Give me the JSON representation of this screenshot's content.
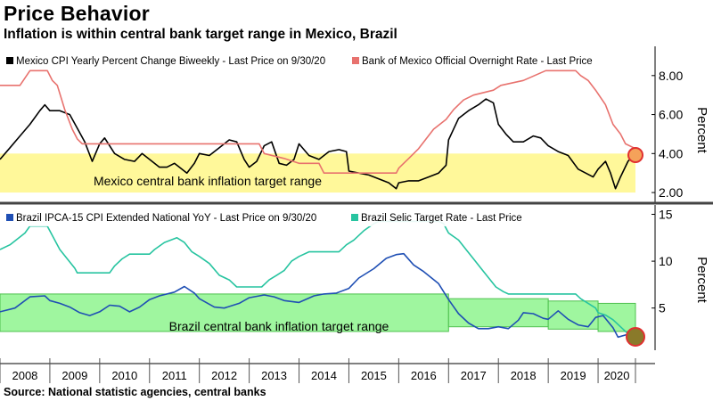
{
  "header": {
    "title": "Price Behavior",
    "subtitle": "Inflation is within central bank target range in Mexico, Brazil"
  },
  "source": "Source: National statistic agencies, central banks",
  "colors": {
    "mexico_cpi": "#000000",
    "mexico_rate": "#e8726e",
    "brazil_cpi": "#1f4fb4",
    "brazil_selic": "#27c4a0",
    "mexico_band": "#fff89a",
    "brazil_band": "#8ef58e",
    "marker_orange": "#f5a25a",
    "marker_brown": "#8a7a2a",
    "marker_ring": "#e03030"
  },
  "chart_data": [
    {
      "type": "line",
      "panel": "top",
      "ylabel": "Percent",
      "ylim": [
        1.5,
        9.5
      ],
      "yticks": [
        2.0,
        4.0,
        6.0,
        8.0
      ],
      "ytick_labels": [
        "2.00",
        "4.00",
        "6.00",
        "8.00"
      ],
      "xlim": [
        2008.0,
        2020.75
      ],
      "legend_position": "top-left",
      "band": {
        "from": 2.0,
        "to": 4.0,
        "label": "Mexico central bank inflation target range"
      },
      "end_marker": {
        "x": 2020.75,
        "y": 4.0
      },
      "series": [
        {
          "name": "Mexico CPI Yearly Percent Change Biweekly - Last Price on 9/30/20",
          "color_key": "mexico_cpi",
          "points": [
            [
              2008.0,
              3.7
            ],
            [
              2008.2,
              4.3
            ],
            [
              2008.4,
              4.9
            ],
            [
              2008.6,
              5.5
            ],
            [
              2008.8,
              6.2
            ],
            [
              2008.9,
              6.5
            ],
            [
              2009.0,
              6.2
            ],
            [
              2009.2,
              6.2
            ],
            [
              2009.4,
              6.0
            ],
            [
              2009.55,
              5.3
            ],
            [
              2009.7,
              4.6
            ],
            [
              2009.85,
              3.6
            ],
            [
              2010.0,
              4.5
            ],
            [
              2010.1,
              4.8
            ],
            [
              2010.3,
              4.0
            ],
            [
              2010.5,
              3.7
            ],
            [
              2010.7,
              3.6
            ],
            [
              2010.85,
              4.0
            ],
            [
              2011.0,
              3.7
            ],
            [
              2011.2,
              3.3
            ],
            [
              2011.35,
              3.3
            ],
            [
              2011.5,
              3.5
            ],
            [
              2011.6,
              3.3
            ],
            [
              2011.75,
              3.0
            ],
            [
              2011.9,
              3.5
            ],
            [
              2012.0,
              4.0
            ],
            [
              2012.2,
              3.9
            ],
            [
              2012.4,
              4.3
            ],
            [
              2012.6,
              4.7
            ],
            [
              2012.75,
              4.6
            ],
            [
              2012.9,
              3.7
            ],
            [
              2013.0,
              3.3
            ],
            [
              2013.15,
              3.6
            ],
            [
              2013.3,
              4.4
            ],
            [
              2013.45,
              4.6
            ],
            [
              2013.6,
              3.5
            ],
            [
              2013.75,
              3.4
            ],
            [
              2013.9,
              3.7
            ],
            [
              2014.0,
              4.5
            ],
            [
              2014.2,
              3.9
            ],
            [
              2014.4,
              3.7
            ],
            [
              2014.6,
              4.1
            ],
            [
              2014.8,
              4.2
            ],
            [
              2014.95,
              4.1
            ],
            [
              2015.0,
              3.1
            ],
            [
              2015.2,
              3.0
            ],
            [
              2015.4,
              2.9
            ],
            [
              2015.6,
              2.7
            ],
            [
              2015.8,
              2.5
            ],
            [
              2015.95,
              2.2
            ],
            [
              2016.0,
              2.5
            ],
            [
              2016.2,
              2.6
            ],
            [
              2016.4,
              2.6
            ],
            [
              2016.6,
              2.8
            ],
            [
              2016.8,
              3.0
            ],
            [
              2016.95,
              3.4
            ],
            [
              2017.0,
              4.7
            ],
            [
              2017.2,
              5.8
            ],
            [
              2017.4,
              6.2
            ],
            [
              2017.6,
              6.5
            ],
            [
              2017.75,
              6.8
            ],
            [
              2017.9,
              6.6
            ],
            [
              2018.0,
              5.5
            ],
            [
              2018.15,
              5.0
            ],
            [
              2018.3,
              4.6
            ],
            [
              2018.5,
              4.6
            ],
            [
              2018.7,
              4.9
            ],
            [
              2018.85,
              4.8
            ],
            [
              2019.0,
              4.4
            ],
            [
              2019.2,
              4.1
            ],
            [
              2019.4,
              3.9
            ],
            [
              2019.6,
              3.2
            ],
            [
              2019.75,
              3.0
            ],
            [
              2019.9,
              2.8
            ],
            [
              2020.0,
              3.2
            ],
            [
              2020.15,
              3.6
            ],
            [
              2020.25,
              3.0
            ],
            [
              2020.35,
              2.2
            ],
            [
              2020.45,
              2.8
            ],
            [
              2020.6,
              3.6
            ],
            [
              2020.75,
              4.0
            ]
          ]
        },
        {
          "name": "Bank of Mexico Official Overnight Rate - Last Price",
          "color_key": "mexico_rate",
          "points": [
            [
              2008.0,
              7.5
            ],
            [
              2008.4,
              7.5
            ],
            [
              2008.6,
              8.25
            ],
            [
              2008.95,
              8.25
            ],
            [
              2009.05,
              7.75
            ],
            [
              2009.15,
              7.5
            ],
            [
              2009.3,
              6.25
            ],
            [
              2009.45,
              5.25
            ],
            [
              2009.55,
              4.75
            ],
            [
              2009.65,
              4.5
            ],
            [
              2013.2,
              4.5
            ],
            [
              2013.3,
              4.0
            ],
            [
              2013.7,
              3.75
            ],
            [
              2014.0,
              3.5
            ],
            [
              2014.4,
              3.5
            ],
            [
              2014.5,
              3.0
            ],
            [
              2015.95,
              3.0
            ],
            [
              2016.0,
              3.25
            ],
            [
              2016.2,
              3.75
            ],
            [
              2016.4,
              4.25
            ],
            [
              2016.55,
              4.75
            ],
            [
              2016.7,
              5.25
            ],
            [
              2016.95,
              5.75
            ],
            [
              2017.1,
              6.25
            ],
            [
              2017.3,
              6.75
            ],
            [
              2017.5,
              7.0
            ],
            [
              2017.9,
              7.25
            ],
            [
              2018.05,
              7.5
            ],
            [
              2018.5,
              7.75
            ],
            [
              2018.95,
              8.25
            ],
            [
              2019.55,
              8.25
            ],
            [
              2019.65,
              8.0
            ],
            [
              2019.8,
              7.75
            ],
            [
              2019.95,
              7.25
            ],
            [
              2020.15,
              6.5
            ],
            [
              2020.3,
              5.5
            ],
            [
              2020.45,
              5.0
            ],
            [
              2020.55,
              4.5
            ],
            [
              2020.75,
              4.25
            ]
          ]
        }
      ]
    },
    {
      "type": "line",
      "panel": "bottom",
      "ylabel": "Percent",
      "ylim": [
        0.5,
        16.0
      ],
      "yticks": [
        5,
        10,
        15
      ],
      "ytick_labels": [
        "5",
        "10",
        "15"
      ],
      "xlim": [
        2008.0,
        2020.75
      ],
      "x_ticks": [
        "2008",
        "2009",
        "2010",
        "2011",
        "2012",
        "2013",
        "2014",
        "2015",
        "2016",
        "2017",
        "2018",
        "2019",
        "2020"
      ],
      "legend_position": "top-left",
      "bands": [
        {
          "from_x": 2008.0,
          "to_x": 2017.0,
          "from": 2.5,
          "to": 6.5
        },
        {
          "from_x": 2017.0,
          "to_x": 2019.0,
          "from": 3.0,
          "to": 6.0
        },
        {
          "from_x": 2019.0,
          "to_x": 2020.0,
          "from": 2.75,
          "to": 5.75
        },
        {
          "from_x": 2020.0,
          "to_x": 2020.75,
          "from": 2.5,
          "to": 5.5
        }
      ],
      "band_label": "Brazil central bank inflation target range",
      "end_marker": {
        "x": 2020.75,
        "y": 2.6
      },
      "series": [
        {
          "name": "Brazil IPCA-15 CPI Extended National YoY - Last Price on 9/30/20",
          "color_key": "brazil_cpi",
          "points": [
            [
              2008.0,
              4.6
            ],
            [
              2008.3,
              5.0
            ],
            [
              2008.6,
              6.2
            ],
            [
              2008.9,
              6.3
            ],
            [
              2009.0,
              5.8
            ],
            [
              2009.2,
              5.5
            ],
            [
              2009.4,
              5.1
            ],
            [
              2009.6,
              4.5
            ],
            [
              2009.8,
              4.2
            ],
            [
              2010.0,
              4.6
            ],
            [
              2010.2,
              5.3
            ],
            [
              2010.4,
              5.2
            ],
            [
              2010.6,
              4.6
            ],
            [
              2010.8,
              5.1
            ],
            [
              2011.0,
              5.9
            ],
            [
              2011.2,
              6.3
            ],
            [
              2011.5,
              6.7
            ],
            [
              2011.7,
              7.3
            ],
            [
              2011.9,
              6.6
            ],
            [
              2012.0,
              6.0
            ],
            [
              2012.3,
              5.1
            ],
            [
              2012.5,
              5.0
            ],
            [
              2012.8,
              5.5
            ],
            [
              2013.0,
              6.1
            ],
            [
              2013.3,
              6.4
            ],
            [
              2013.5,
              6.2
            ],
            [
              2013.7,
              5.8
            ],
            [
              2014.0,
              5.6
            ],
            [
              2014.3,
              6.3
            ],
            [
              2014.5,
              6.5
            ],
            [
              2014.75,
              6.6
            ],
            [
              2015.0,
              7.1
            ],
            [
              2015.2,
              8.2
            ],
            [
              2015.5,
              9.2
            ],
            [
              2015.75,
              10.3
            ],
            [
              2015.95,
              10.7
            ],
            [
              2016.1,
              10.8
            ],
            [
              2016.3,
              9.6
            ],
            [
              2016.5,
              8.9
            ],
            [
              2016.8,
              7.6
            ],
            [
              2017.0,
              5.9
            ],
            [
              2017.2,
              4.4
            ],
            [
              2017.4,
              3.4
            ],
            [
              2017.6,
              2.8
            ],
            [
              2017.8,
              2.8
            ],
            [
              2018.0,
              3.0
            ],
            [
              2018.2,
              2.8
            ],
            [
              2018.4,
              3.7
            ],
            [
              2018.5,
              4.5
            ],
            [
              2018.7,
              4.4
            ],
            [
              2018.9,
              3.9
            ],
            [
              2019.0,
              3.8
            ],
            [
              2019.2,
              4.7
            ],
            [
              2019.4,
              3.8
            ],
            [
              2019.6,
              3.2
            ],
            [
              2019.8,
              3.0
            ],
            [
              2019.95,
              4.0
            ],
            [
              2020.1,
              4.2
            ],
            [
              2020.3,
              2.9
            ],
            [
              2020.4,
              1.9
            ],
            [
              2020.6,
              2.2
            ],
            [
              2020.75,
              2.6
            ]
          ]
        },
        {
          "name": "Brazil Selic Target Rate - Last Price",
          "color_key": "brazil_selic",
          "points": [
            [
              2008.0,
              11.25
            ],
            [
              2008.2,
              11.75
            ],
            [
              2008.5,
              13.0
            ],
            [
              2008.6,
              13.75
            ],
            [
              2008.95,
              13.75
            ],
            [
              2009.05,
              12.75
            ],
            [
              2009.2,
              11.25
            ],
            [
              2009.35,
              10.25
            ],
            [
              2009.5,
              9.25
            ],
            [
              2009.55,
              8.75
            ],
            [
              2010.2,
              8.75
            ],
            [
              2010.3,
              9.5
            ],
            [
              2010.45,
              10.25
            ],
            [
              2010.6,
              10.75
            ],
            [
              2011.0,
              10.75
            ],
            [
              2011.1,
              11.25
            ],
            [
              2011.3,
              12.0
            ],
            [
              2011.55,
              12.5
            ],
            [
              2011.7,
              12.0
            ],
            [
              2011.85,
              11.0
            ],
            [
              2012.0,
              10.5
            ],
            [
              2012.2,
              9.75
            ],
            [
              2012.4,
              8.5
            ],
            [
              2012.6,
              8.0
            ],
            [
              2012.75,
              7.25
            ],
            [
              2013.25,
              7.25
            ],
            [
              2013.4,
              8.0
            ],
            [
              2013.55,
              8.5
            ],
            [
              2013.7,
              9.0
            ],
            [
              2013.85,
              10.0
            ],
            [
              2014.0,
              10.5
            ],
            [
              2014.2,
              11.0
            ],
            [
              2014.35,
              11.0
            ],
            [
              2014.8,
              11.0
            ],
            [
              2014.95,
              11.75
            ],
            [
              2015.1,
              12.25
            ],
            [
              2015.3,
              13.25
            ],
            [
              2015.5,
              14.0
            ],
            [
              2015.6,
              14.25
            ],
            [
              2016.8,
              14.25
            ],
            [
              2016.9,
              14.0
            ],
            [
              2017.0,
              13.0
            ],
            [
              2017.2,
              12.25
            ],
            [
              2017.35,
              11.25
            ],
            [
              2017.5,
              10.25
            ],
            [
              2017.65,
              9.25
            ],
            [
              2017.8,
              8.25
            ],
            [
              2017.95,
              7.25
            ],
            [
              2018.1,
              6.75
            ],
            [
              2018.2,
              6.5
            ],
            [
              2019.55,
              6.5
            ],
            [
              2019.65,
              6.0
            ],
            [
              2019.8,
              5.5
            ],
            [
              2019.95,
              5.0
            ],
            [
              2020.0,
              4.5
            ],
            [
              2020.15,
              4.25
            ],
            [
              2020.3,
              3.75
            ],
            [
              2020.45,
              3.0
            ],
            [
              2020.6,
              2.25
            ],
            [
              2020.75,
              2.0
            ]
          ]
        }
      ]
    }
  ]
}
